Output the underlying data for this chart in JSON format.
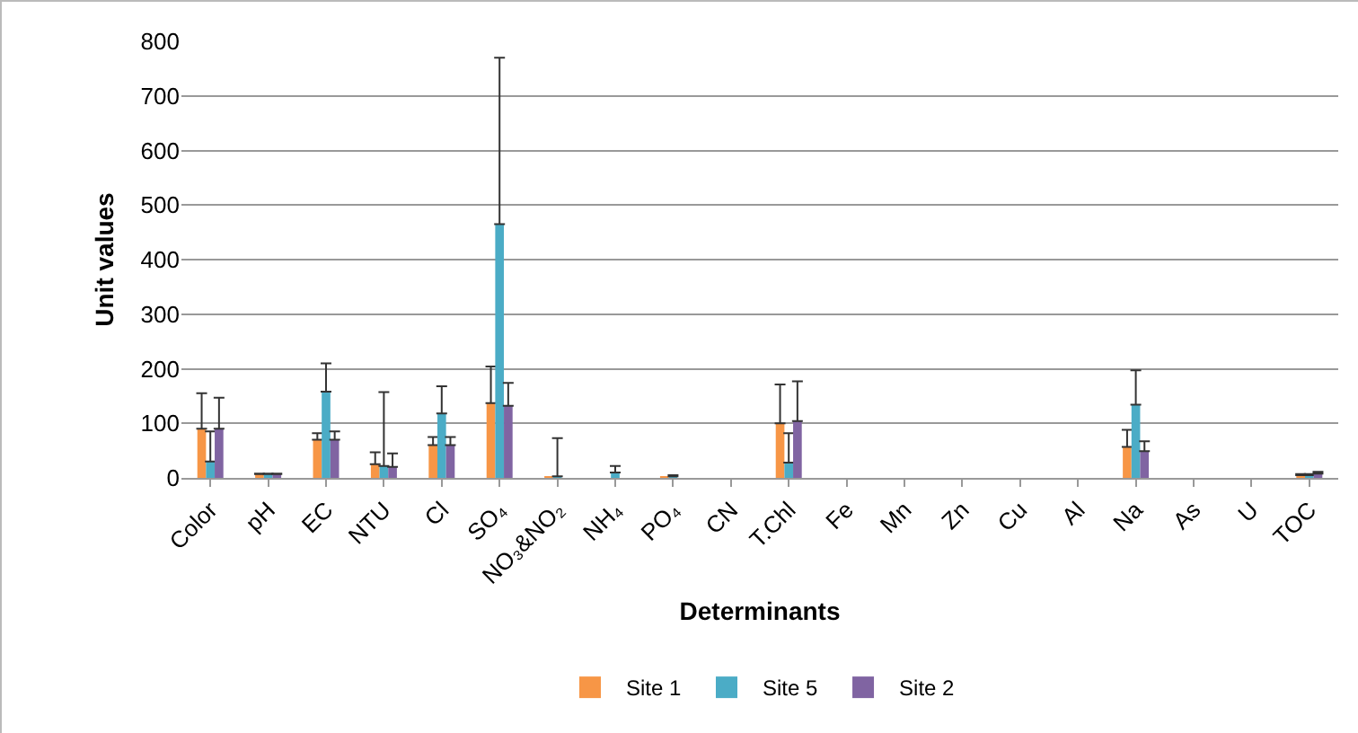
{
  "chart_data": {
    "type": "bar",
    "xlabel": "Determinants",
    "ylabel": "Unit values",
    "categories": [
      "Color",
      "pH",
      "EC",
      "NTU",
      "Cl",
      "SO₄",
      "NO₃&NO₂",
      "NH₄",
      "PO₄",
      "CN",
      "T.Chl",
      "Fe",
      "Mn",
      "Zn",
      "Cu",
      "Al",
      "Na",
      "As",
      "U",
      "TOC"
    ],
    "series": [
      {
        "name": "Site 1",
        "color": "#f79646",
        "values": [
          90,
          7,
          70,
          25,
          60,
          137,
          2,
          0,
          3,
          0,
          100,
          0,
          0,
          0,
          0,
          0,
          57,
          0,
          0,
          5
        ],
        "errors": [
          [
            90,
            155
          ],
          [
            7,
            8
          ],
          [
            70,
            82
          ],
          [
            25,
            47
          ],
          [
            60,
            75
          ],
          [
            137,
            204
          ],
          null,
          null,
          null,
          null,
          [
            100,
            171
          ],
          null,
          null,
          null,
          null,
          null,
          [
            57,
            88
          ],
          null,
          null,
          [
            5,
            7
          ]
        ]
      },
      {
        "name": "Site 5",
        "color": "#4bacc6",
        "values": [
          30,
          7,
          158,
          22,
          118,
          465,
          3,
          10,
          3,
          0,
          28,
          0,
          0,
          0,
          0,
          0,
          134,
          0,
          0,
          5
        ],
        "errors": [
          [
            30,
            85
          ],
          [
            7,
            8
          ],
          [
            158,
            210
          ],
          [
            22,
            157
          ],
          [
            118,
            168
          ],
          [
            465,
            770
          ],
          [
            3,
            73
          ],
          [
            10,
            22
          ],
          [
            3,
            5
          ],
          null,
          [
            28,
            82
          ],
          null,
          null,
          null,
          null,
          null,
          [
            134,
            197
          ],
          null,
          null,
          [
            5,
            7
          ]
        ]
      },
      {
        "name": "Site 2",
        "color": "#8064a2",
        "values": [
          90,
          7,
          70,
          20,
          60,
          132,
          null,
          0,
          0,
          0,
          104,
          0,
          0,
          0,
          0,
          0,
          49,
          0,
          0,
          8
        ],
        "errors": [
          [
            90,
            147
          ],
          [
            7,
            8
          ],
          [
            70,
            85
          ],
          [
            20,
            45
          ],
          [
            60,
            75
          ],
          [
            132,
            174
          ],
          null,
          null,
          null,
          null,
          [
            104,
            177
          ],
          null,
          null,
          null,
          null,
          null,
          [
            49,
            67
          ],
          null,
          null,
          [
            8,
            11
          ]
        ]
      }
    ],
    "ylim": [
      0,
      800
    ],
    "yticks": [
      0,
      100,
      200,
      300,
      400,
      500,
      600,
      700,
      800
    ],
    "grid": "y",
    "legend": "bottom"
  }
}
